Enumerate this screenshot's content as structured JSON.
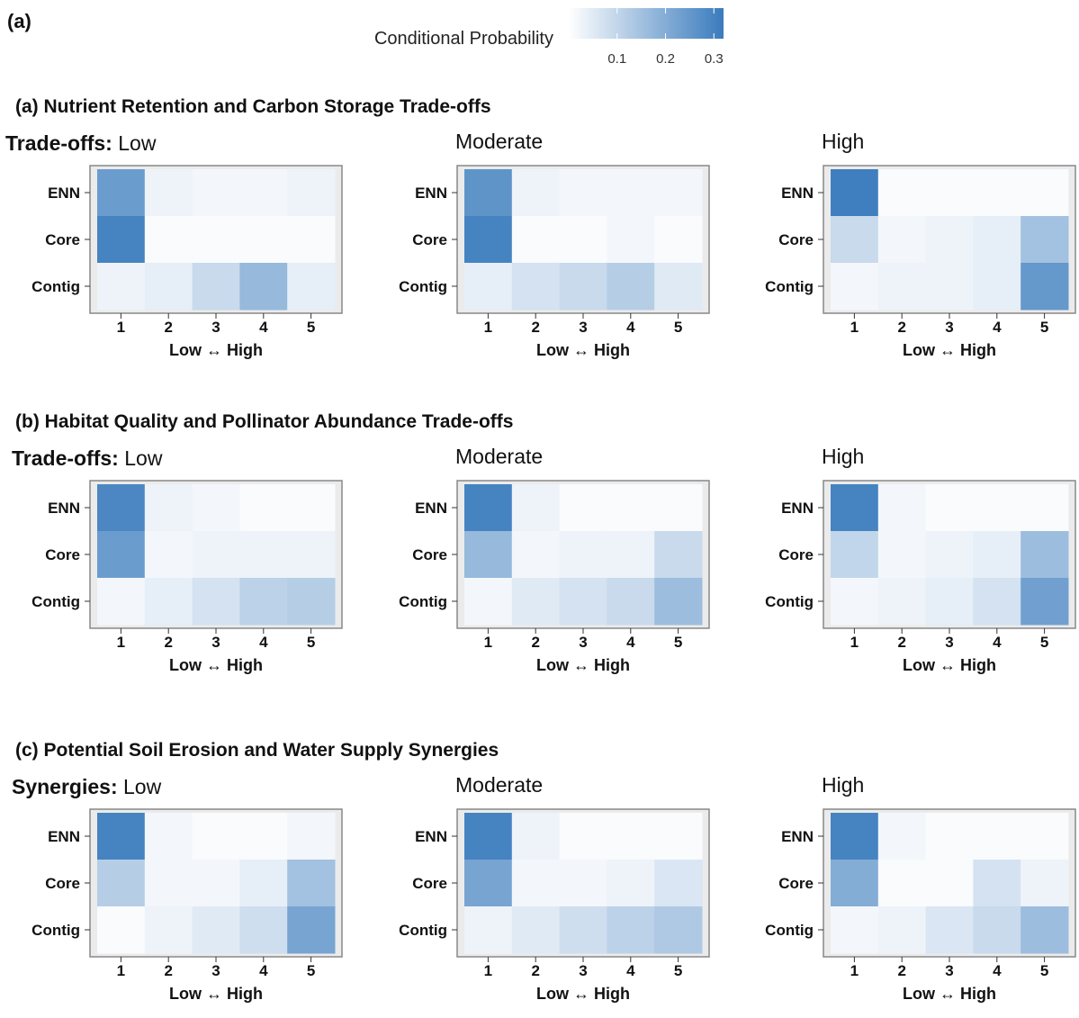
{
  "figure_label": "(a)",
  "legend": {
    "title": "Conditional Probability",
    "ticks": [
      0.1,
      0.2,
      0.3
    ],
    "tick_labels": [
      "0.1",
      "0.2",
      "0.3"
    ],
    "range": [
      0.0,
      0.32
    ],
    "low_color": "#ffffff",
    "high_color": "#3a7bbd"
  },
  "sections": [
    {
      "label": "(a)",
      "title": "Nutrient Retention and Carbon Storage Trade-offs",
      "prefix": "Trade-offs:"
    },
    {
      "label": "(b)",
      "title": "Habitat Quality and Pollinator Abundance Trade-offs",
      "prefix": "Trade-offs:"
    },
    {
      "label": "(c)",
      "title": "Potential Soil Erosion and Water Supply Synergies",
      "prefix": "Synergies:"
    }
  ],
  "panel_titles": [
    "Low",
    "Moderate",
    "High"
  ],
  "colors": {
    "panel_bg": "#ebebeb",
    "panel_border": "#888888",
    "text": "#111111"
  },
  "chart_data": [
    {
      "type": "heatmap",
      "title": "Nutrient Retention and Carbon Storage Trade-offs — Low",
      "x_categories": [
        "1",
        "2",
        "3",
        "4",
        "5"
      ],
      "y_categories": [
        "ENN",
        "Core",
        "Contig"
      ],
      "xlabel": "Low ↔ High",
      "values": [
        [
          0.24,
          0.03,
          0.02,
          0.02,
          0.03
        ],
        [
          0.3,
          0.01,
          0.01,
          0.01,
          0.01
        ],
        [
          0.03,
          0.04,
          0.09,
          0.17,
          0.04
        ]
      ]
    },
    {
      "type": "heatmap",
      "title": "Nutrient Retention and Carbon Storage Trade-offs — Moderate",
      "x_categories": [
        "1",
        "2",
        "3",
        "4",
        "5"
      ],
      "y_categories": [
        "ENN",
        "Core",
        "Contig"
      ],
      "xlabel": "Low ↔ High",
      "values": [
        [
          0.26,
          0.03,
          0.02,
          0.02,
          0.02
        ],
        [
          0.3,
          0.01,
          0.01,
          0.02,
          0.01
        ],
        [
          0.04,
          0.07,
          0.09,
          0.12,
          0.05
        ]
      ]
    },
    {
      "type": "heatmap",
      "title": "Nutrient Retention and Carbon Storage Trade-offs — High",
      "x_categories": [
        "1",
        "2",
        "3",
        "4",
        "5"
      ],
      "y_categories": [
        "ENN",
        "Core",
        "Contig"
      ],
      "xlabel": "Low ↔ High",
      "values": [
        [
          0.31,
          0.01,
          0.01,
          0.01,
          0.01
        ],
        [
          0.09,
          0.02,
          0.03,
          0.04,
          0.15
        ],
        [
          0.02,
          0.03,
          0.03,
          0.04,
          0.25
        ]
      ]
    },
    {
      "type": "heatmap",
      "title": "Habitat Quality and Pollinator Abundance Trade-offs — Low",
      "x_categories": [
        "1",
        "2",
        "3",
        "4",
        "5"
      ],
      "y_categories": [
        "ENN",
        "Core",
        "Contig"
      ],
      "xlabel": "Low ↔ High",
      "values": [
        [
          0.29,
          0.03,
          0.02,
          0.01,
          0.01
        ],
        [
          0.24,
          0.02,
          0.03,
          0.03,
          0.03
        ],
        [
          0.02,
          0.04,
          0.07,
          0.11,
          0.12
        ]
      ]
    },
    {
      "type": "heatmap",
      "title": "Habitat Quality and Pollinator Abundance Trade-offs — Moderate",
      "x_categories": [
        "1",
        "2",
        "3",
        "4",
        "5"
      ],
      "y_categories": [
        "ENN",
        "Core",
        "Contig"
      ],
      "xlabel": "Low ↔ High",
      "values": [
        [
          0.3,
          0.03,
          0.01,
          0.01,
          0.01
        ],
        [
          0.17,
          0.02,
          0.03,
          0.03,
          0.09
        ],
        [
          0.02,
          0.05,
          0.07,
          0.09,
          0.16
        ]
      ]
    },
    {
      "type": "heatmap",
      "title": "Habitat Quality and Pollinator Abundance Trade-offs — High",
      "x_categories": [
        "1",
        "2",
        "3",
        "4",
        "5"
      ],
      "y_categories": [
        "ENN",
        "Core",
        "Contig"
      ],
      "xlabel": "Low ↔ High",
      "values": [
        [
          0.3,
          0.02,
          0.01,
          0.01,
          0.01
        ],
        [
          0.1,
          0.02,
          0.03,
          0.04,
          0.16
        ],
        [
          0.02,
          0.03,
          0.04,
          0.07,
          0.23
        ]
      ]
    },
    {
      "type": "heatmap",
      "title": "Potential Soil Erosion and Water Supply Synergies — Low",
      "x_categories": [
        "1",
        "2",
        "3",
        "4",
        "5"
      ],
      "y_categories": [
        "ENN",
        "Core",
        "Contig"
      ],
      "xlabel": "Low ↔ High",
      "values": [
        [
          0.3,
          0.02,
          0.01,
          0.01,
          0.02
        ],
        [
          0.12,
          0.02,
          0.02,
          0.04,
          0.15
        ],
        [
          0.01,
          0.03,
          0.05,
          0.08,
          0.22
        ]
      ]
    },
    {
      "type": "heatmap",
      "title": "Potential Soil Erosion and Water Supply Synergies — Moderate",
      "x_categories": [
        "1",
        "2",
        "3",
        "4",
        "5"
      ],
      "y_categories": [
        "ENN",
        "Core",
        "Contig"
      ],
      "xlabel": "Low ↔ High",
      "values": [
        [
          0.3,
          0.03,
          0.01,
          0.01,
          0.01
        ],
        [
          0.22,
          0.02,
          0.02,
          0.03,
          0.06
        ],
        [
          0.03,
          0.05,
          0.08,
          0.11,
          0.13
        ]
      ]
    },
    {
      "type": "heatmap",
      "title": "Potential Soil Erosion and Water Supply Synergies — High",
      "x_categories": [
        "1",
        "2",
        "3",
        "4",
        "5"
      ],
      "y_categories": [
        "ENN",
        "Core",
        "Contig"
      ],
      "xlabel": "Low ↔ High",
      "values": [
        [
          0.3,
          0.02,
          0.01,
          0.01,
          0.01
        ],
        [
          0.2,
          0.01,
          0.01,
          0.07,
          0.03
        ],
        [
          0.02,
          0.03,
          0.06,
          0.09,
          0.16
        ]
      ]
    }
  ]
}
